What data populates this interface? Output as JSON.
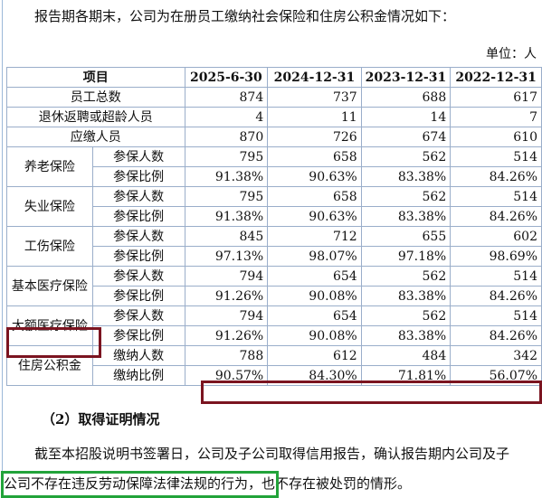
{
  "intro": "报告期各期末，公司为在册员工缴纳社会保险和住房公积金情况如下：",
  "unit": "单位：人",
  "table": {
    "headers": [
      "项目",
      "2025-6-30",
      "2024-12-31",
      "2023-12-31",
      "2022-12-31"
    ],
    "simple_rows": [
      {
        "label": "员工总数",
        "values": [
          "874",
          "737",
          "688",
          "617"
        ]
      },
      {
        "label": "退休返聘或超龄人员",
        "values": [
          "4",
          "11",
          "14",
          "7"
        ]
      },
      {
        "label": "应缴人员",
        "values": [
          "870",
          "726",
          "674",
          "610"
        ]
      }
    ],
    "groups": [
      {
        "category": "养老保险",
        "rows": [
          {
            "label": "参保人数",
            "values": [
              "795",
              "658",
              "562",
              "514"
            ]
          },
          {
            "label": "参保比例",
            "values": [
              "91.38%",
              "90.63%",
              "83.38%",
              "84.26%"
            ]
          }
        ]
      },
      {
        "category": "失业保险",
        "rows": [
          {
            "label": "参保人数",
            "values": [
              "795",
              "658",
              "562",
              "514"
            ]
          },
          {
            "label": "参保比例",
            "values": [
              "91.38%",
              "90.63%",
              "83.38%",
              "84.26%"
            ]
          }
        ]
      },
      {
        "category": "工伤保险",
        "rows": [
          {
            "label": "参保人数",
            "values": [
              "845",
              "712",
              "655",
              "602"
            ]
          },
          {
            "label": "参保比例",
            "values": [
              "97.13%",
              "98.07%",
              "97.18%",
              "98.69%"
            ]
          }
        ]
      },
      {
        "category": "基本医疗保险",
        "rows": [
          {
            "label": "参保人数",
            "values": [
              "794",
              "654",
              "562",
              "514"
            ]
          },
          {
            "label": "参保比例",
            "values": [
              "91.26%",
              "90.08%",
              "83.38%",
              "84.26%"
            ]
          }
        ]
      },
      {
        "category": "大额医疗保险",
        "rows": [
          {
            "label": "参保人数",
            "values": [
              "794",
              "654",
              "562",
              "514"
            ]
          },
          {
            "label": "参保比例",
            "values": [
              "91.26%",
              "90.08%",
              "83.38%",
              "84.26%"
            ]
          }
        ]
      },
      {
        "category": "住房公积金",
        "rows": [
          {
            "label": "缴纳人数",
            "values": [
              "788",
              "612",
              "484",
              "342"
            ]
          },
          {
            "label": "缴纳比例",
            "values": [
              "90.57%",
              "84.30%",
              "71.81%",
              "56.07%"
            ]
          }
        ]
      }
    ]
  },
  "section_heading": "（2）取得证明情况",
  "paragraph": {
    "line1": "截至本招股说明书签署日，公司及子公司取得信用报告，确认报告期内公司及子",
    "line2_highlight": "公司不存在违反劳动保障法律法规的行为",
    "line2_rest": "，也不存在被处罚的情形。"
  },
  "colors": {
    "highlight_red": "#7b1420",
    "highlight_green": "#22a33a",
    "table_border": "#9aaeca"
  }
}
